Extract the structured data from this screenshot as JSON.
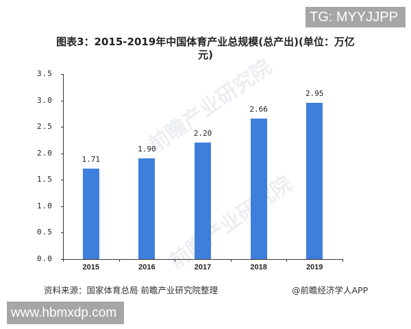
{
  "overlay": {
    "top_tag": "TG: MYYJJPP",
    "bottom_url": "www.hbmxdp.com"
  },
  "header": {
    "title_line1": "图表3：2015-2019年中国体育产业总规模(总产出)(单位：万亿",
    "title_line2": "元)"
  },
  "footer": {
    "source": "资料来源：国家体育总局 前瞻产业研究院整理",
    "credit": "@前瞻经济学人APP"
  },
  "watermark": {
    "text": "前瞻产业研究院"
  },
  "colors": {
    "bar": "#3e7fdc",
    "overlay_bg": "#a6a6a6"
  },
  "chart_data": {
    "type": "bar",
    "title": "图表3：2015-2019年中国体育产业总规模(总产出)(单位：万亿元)",
    "xlabel": "",
    "ylabel": "",
    "categories": [
      "2015",
      "2016",
      "2017",
      "2018",
      "2019"
    ],
    "values": [
      1.71,
      1.9,
      2.2,
      2.66,
      2.95
    ],
    "value_labels": [
      "1.71",
      "1.90",
      "2.20",
      "2.66",
      "2.95"
    ],
    "yticks": [
      "0.0",
      "0.5",
      "1.0",
      "1.5",
      "2.0",
      "2.5",
      "3.0",
      "3.5"
    ],
    "ylim": [
      0,
      3.5
    ],
    "grid": false,
    "legend": "none"
  }
}
